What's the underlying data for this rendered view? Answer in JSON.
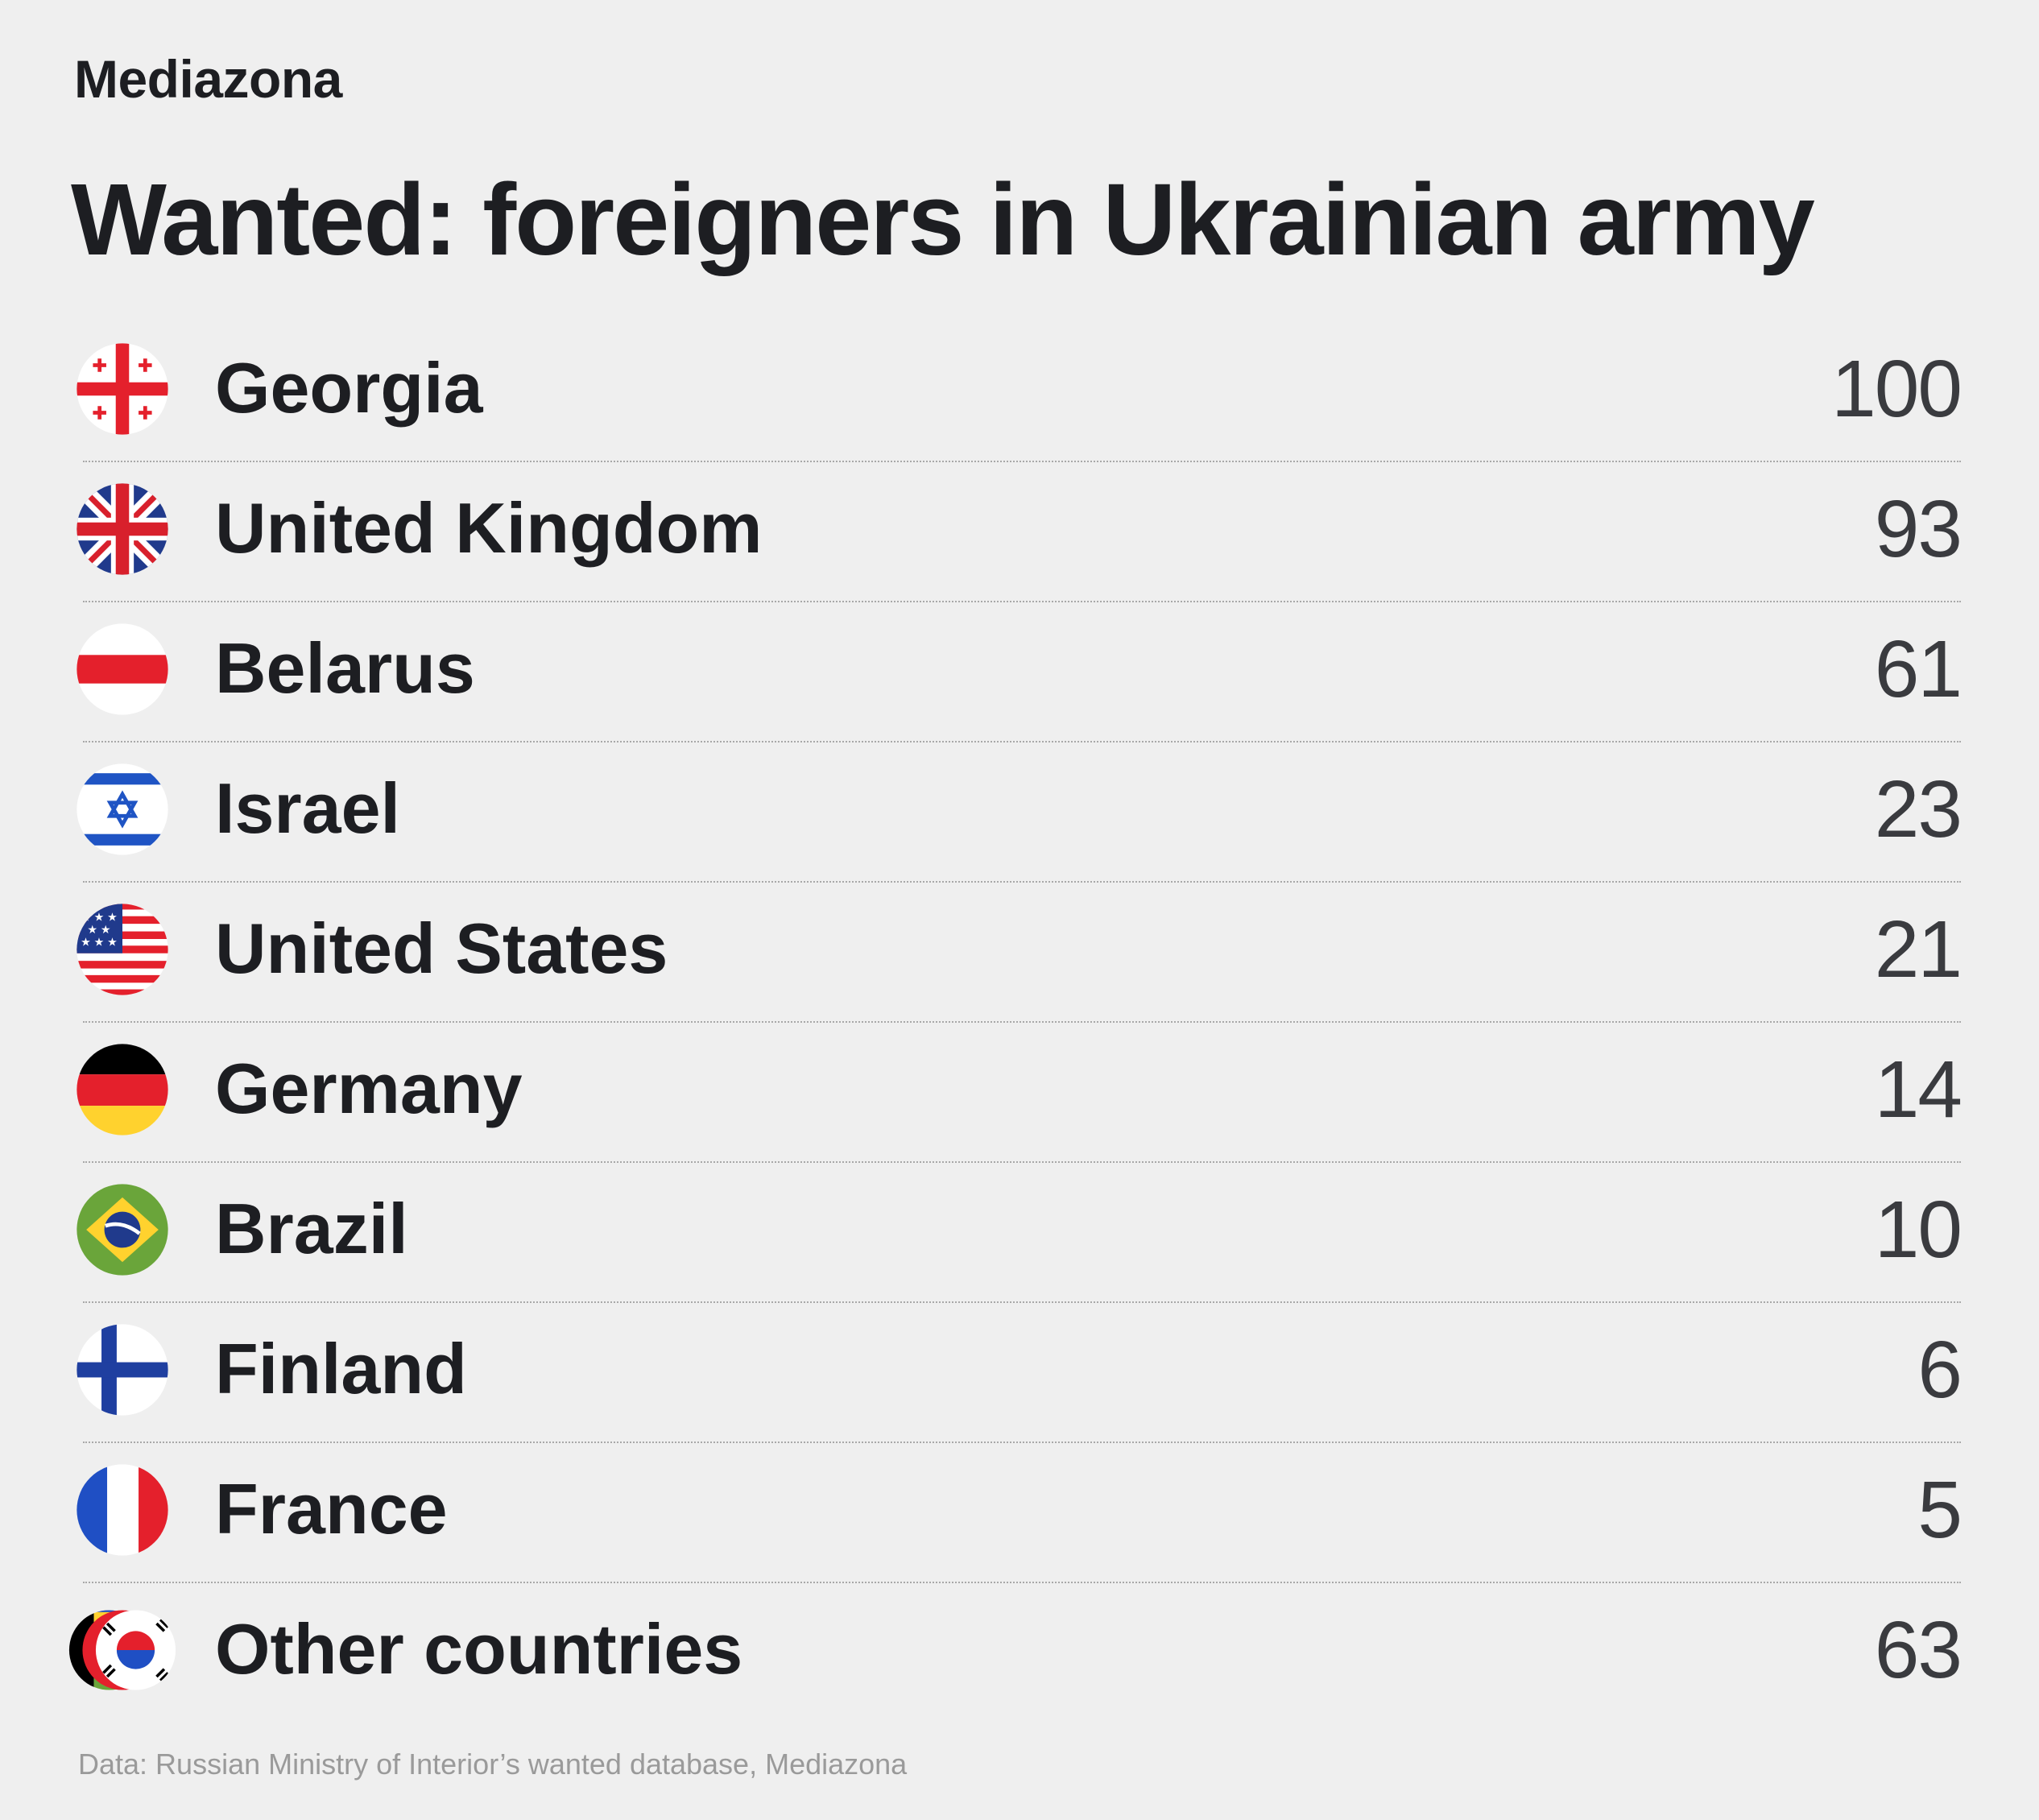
{
  "brand": "Mediazona",
  "source": "Data: Russian Ministry of Interior’s wanted database, Mediazona",
  "chart_data": {
    "type": "table",
    "title": "Wanted: foreigners in Ukrainian army",
    "rows": [
      {
        "country": "Georgia",
        "value": 100,
        "flag": "georgia-flag-icon"
      },
      {
        "country": "United Kingdom",
        "value": 93,
        "flag": "united-kingdom-flag-icon"
      },
      {
        "country": "Belarus",
        "value": 61,
        "flag": "belarus-flag-icon"
      },
      {
        "country": "Israel",
        "value": 23,
        "flag": "israel-flag-icon"
      },
      {
        "country": "United States",
        "value": 21,
        "flag": "united-states-flag-icon"
      },
      {
        "country": "Germany",
        "value": 14,
        "flag": "germany-flag-icon"
      },
      {
        "country": "Brazil",
        "value": 10,
        "flag": "brazil-flag-icon"
      },
      {
        "country": "Finland",
        "value": 6,
        "flag": "finland-flag-icon"
      },
      {
        "country": "France",
        "value": 5,
        "flag": "france-flag-icon"
      },
      {
        "country": "Other countries",
        "value": 63,
        "flag": "other-countries-flags-icon"
      }
    ]
  }
}
